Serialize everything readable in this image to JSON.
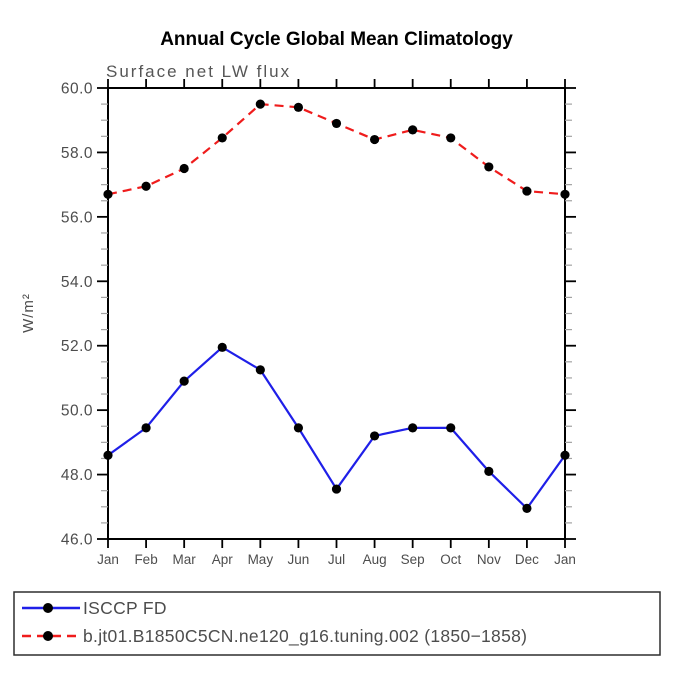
{
  "chart_data": {
    "type": "line",
    "title": "Annual Cycle Global Mean Climatology",
    "subtitle": "Surface net LW flux",
    "ylabel": "W/m²",
    "categories": [
      "Jan",
      "Feb",
      "Mar",
      "Apr",
      "May",
      "Jun",
      "Jul",
      "Aug",
      "Sep",
      "Oct",
      "Nov",
      "Dec",
      "Jan"
    ],
    "ylim": [
      46.0,
      60.0
    ],
    "ytick_major": [
      46.0,
      48.0,
      50.0,
      52.0,
      54.0,
      56.0,
      58.0,
      60.0
    ],
    "ytick_labels": [
      "46.0",
      "48.0",
      "50.0",
      "52.0",
      "54.0",
      "56.0",
      "58.0",
      "60.0"
    ],
    "ytick_minor_step": 0.5,
    "grid": false,
    "legend_position": "bottom-left-box",
    "series": [
      {
        "name": "ISCCP FD",
        "style": "solid",
        "color": "#1f1fe8",
        "marker": "circle",
        "marker_color": "#000000",
        "values": [
          48.6,
          49.45,
          50.9,
          51.95,
          51.25,
          49.45,
          47.55,
          49.2,
          49.45,
          49.45,
          48.1,
          46.95,
          48.6
        ]
      },
      {
        "name": "b.jt01.B1850C5CN.ne120_g16.tuning.002 (1850−1858)",
        "style": "dashed",
        "color": "#ef1c1c",
        "marker": "circle",
        "marker_color": "#000000",
        "values": [
          56.7,
          56.95,
          57.5,
          58.45,
          59.5,
          59.4,
          58.9,
          58.4,
          58.7,
          58.45,
          57.55,
          56.8,
          56.7
        ]
      }
    ],
    "colors": {
      "axis": "#000000",
      "minor_tick": "#a3a3a3",
      "tick_label": "#4d4d4d",
      "legend_border": "#2e2e2e"
    }
  }
}
